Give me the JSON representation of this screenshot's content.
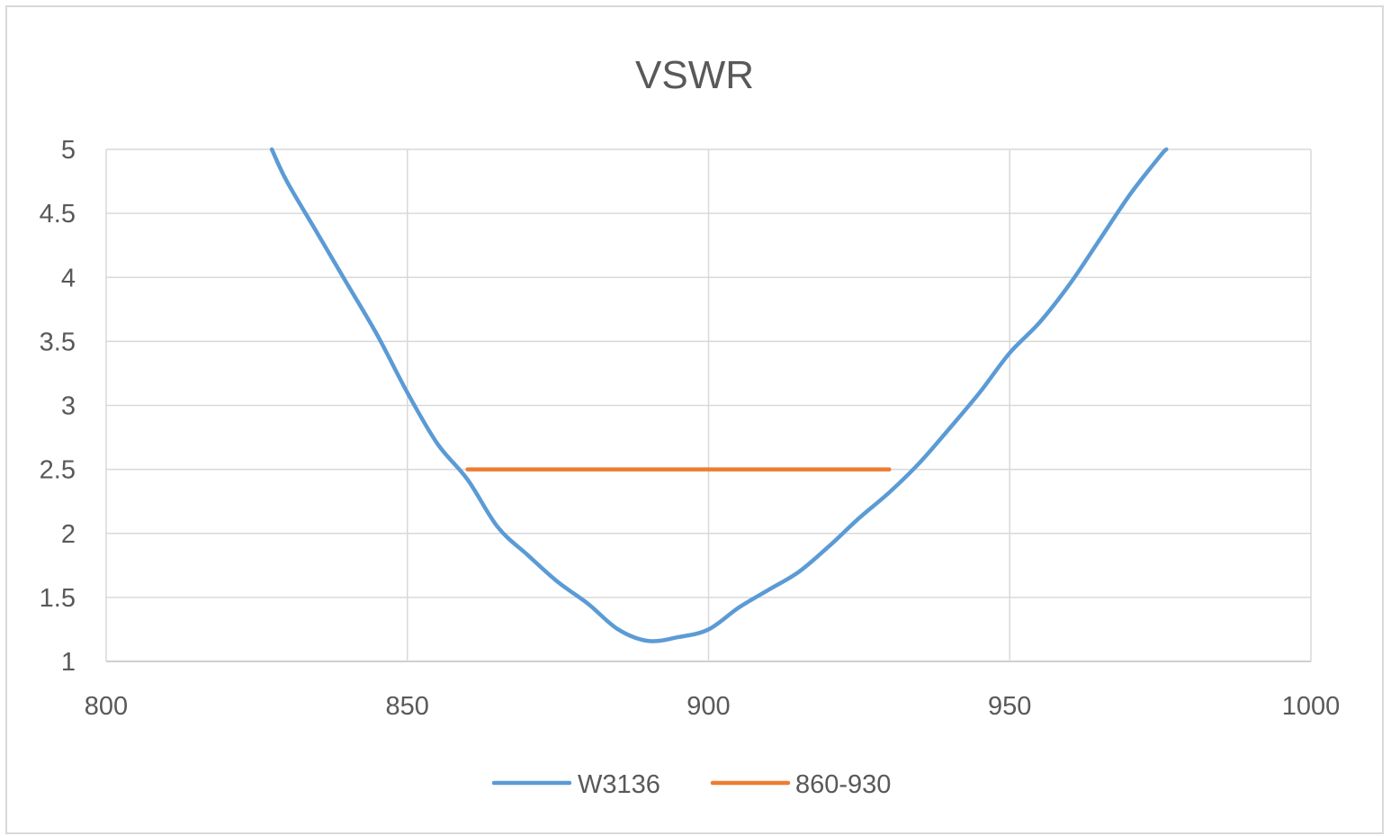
{
  "chart_data": {
    "type": "line",
    "title": "VSWR",
    "xlabel": "",
    "ylabel": "",
    "xlim": [
      800,
      1000
    ],
    "ylim": [
      1,
      5
    ],
    "x_ticks": [
      "800",
      "850",
      "900",
      "950",
      "1000"
    ],
    "y_ticks": [
      "1",
      "1.5",
      "2",
      "2.5",
      "3",
      "3.5",
      "4",
      "4.5",
      "5"
    ],
    "grid": true,
    "legend_position": "bottom",
    "series": [
      {
        "name": "W3136",
        "color": "#5b9bd5",
        "points": [
          [
            827.5,
            5.0
          ],
          [
            830,
            4.75
          ],
          [
            835,
            4.35
          ],
          [
            840,
            3.95
          ],
          [
            845,
            3.55
          ],
          [
            850,
            3.1
          ],
          [
            855,
            2.7
          ],
          [
            860,
            2.42
          ],
          [
            865,
            2.05
          ],
          [
            870,
            1.83
          ],
          [
            875,
            1.62
          ],
          [
            880,
            1.45
          ],
          [
            885,
            1.25
          ],
          [
            890,
            1.16
          ],
          [
            895,
            1.19
          ],
          [
            900,
            1.25
          ],
          [
            905,
            1.42
          ],
          [
            910,
            1.56
          ],
          [
            915,
            1.7
          ],
          [
            920,
            1.9
          ],
          [
            925,
            2.12
          ],
          [
            930,
            2.32
          ],
          [
            935,
            2.55
          ],
          [
            940,
            2.82
          ],
          [
            945,
            3.1
          ],
          [
            950,
            3.41
          ],
          [
            955,
            3.65
          ],
          [
            960,
            3.95
          ],
          [
            965,
            4.3
          ],
          [
            970,
            4.65
          ],
          [
            975,
            4.95
          ],
          [
            976,
            5.0
          ]
        ]
      },
      {
        "name": "860-930",
        "color": "#ed7d31",
        "points": [
          [
            860,
            2.5
          ],
          [
            930,
            2.5
          ]
        ]
      }
    ]
  }
}
